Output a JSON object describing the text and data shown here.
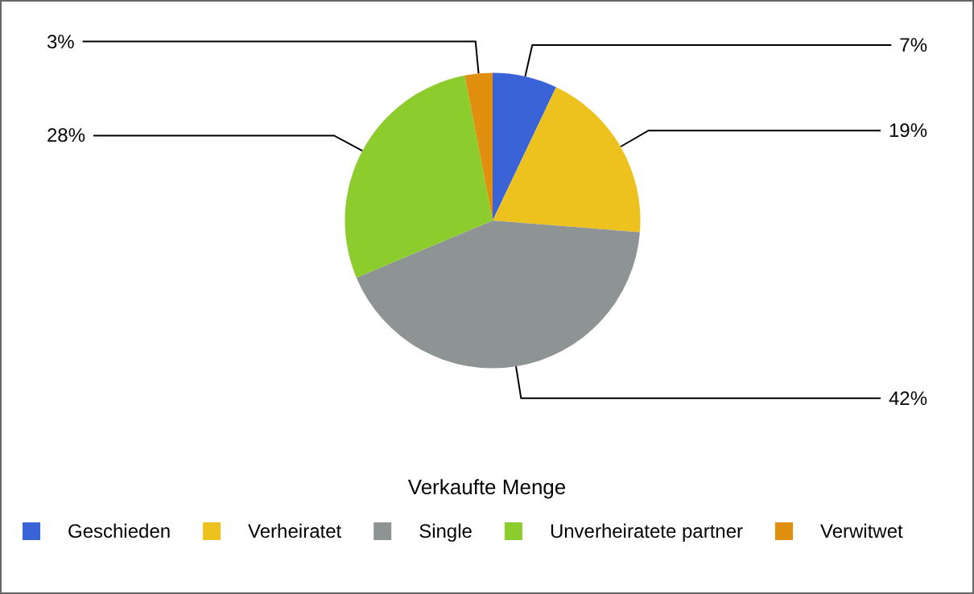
{
  "chart_data": {
    "type": "pie",
    "legend_title": "Verkaufte Menge",
    "legend": "bottom",
    "categories": [
      "Geschieden",
      "Verheiratet",
      "Single",
      "Unverheiratete partner",
      "Verwitwet"
    ],
    "values": [
      7,
      19,
      42,
      28,
      3
    ],
    "value_labels": [
      "7%",
      "19%",
      "42%",
      "28%",
      "3%"
    ],
    "colors": [
      "#3a63d8",
      "#eec21e",
      "#8e9394",
      "#8ccc2c",
      "#e0900e"
    ]
  }
}
